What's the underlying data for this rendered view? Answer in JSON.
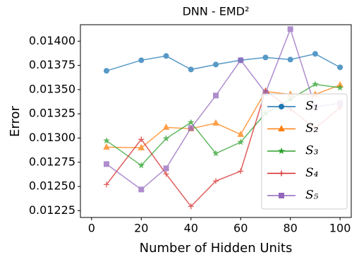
{
  "chart_data": {
    "type": "line",
    "title": "DNN - EMD²",
    "x_label": "Number of Hidden Units",
    "y_label": "Error",
    "x": [
      6,
      20,
      30,
      40,
      50,
      60,
      70,
      80,
      90,
      100
    ],
    "series": [
      {
        "name": "S₁",
        "color": "#1f77b4",
        "marker": "circle",
        "values": [
          0.013694,
          0.013803,
          0.013847,
          0.013708,
          0.013759,
          0.013803,
          0.013832,
          0.01381,
          0.013869,
          0.01373
        ]
      },
      {
        "name": "S₂",
        "color": "#ff7f0e",
        "marker": "triangle",
        "values": [
          0.012906,
          0.012899,
          0.01311,
          0.013096,
          0.013154,
          0.013037,
          0.013482,
          0.01345,
          0.01345,
          0.013548
        ]
      },
      {
        "name": "S₃",
        "color": "#2ca02c",
        "marker": "star",
        "values": [
          0.012972,
          0.012717,
          0.012994,
          0.013161,
          0.012841,
          0.012957,
          0.013256,
          0.0134,
          0.013555,
          0.013519
        ]
      },
      {
        "name": "S₄",
        "color": "#d62728",
        "marker": "plus",
        "values": [
          0.01252,
          0.012987,
          0.012629,
          0.012294,
          0.012556,
          0.012658,
          0.01349,
          0.0133,
          0.0131,
          0.013315
        ]
      },
      {
        "name": "S₅",
        "color": "#9467bd",
        "marker": "square",
        "values": [
          0.012731,
          0.012469,
          0.012687,
          0.013103,
          0.013439,
          0.013803,
          0.013468,
          0.014124,
          0.013322,
          0.013358
        ]
      }
    ],
    "xlim": [
      -4.5,
      104.5
    ],
    "xticks": [
      0,
      20,
      40,
      60,
      80,
      100
    ],
    "ylim": [
      0.01218,
      0.01417
    ],
    "yticks": [
      0.01225,
      {
        "value": 0.0125,
        "label": "0.01250"
      },
      0.01275,
      {
        "value": 0.013,
        "label": "0.01300"
      },
      0.01325,
      {
        "value": 0.0135,
        "label": "0.01350"
      },
      0.01375,
      {
        "value": 0.014,
        "label": "0.01400"
      }
    ],
    "legend": "lower right",
    "grid": false
  }
}
